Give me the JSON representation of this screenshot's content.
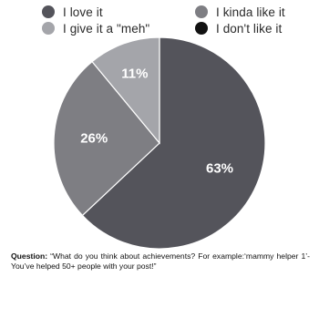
{
  "chart_data": {
    "type": "pie",
    "categories": [
      "I love it",
      "I kinda like it",
      "I give it a \"meh\"",
      "I don't like it"
    ],
    "values": [
      63,
      26,
      11,
      0
    ],
    "data_labels": [
      "63%",
      "26%",
      "11%",
      ""
    ],
    "colors": [
      "#54545b",
      "#7e7e83",
      "#a4a5aa",
      "#121212"
    ],
    "legend_placement": "top",
    "title": "",
    "note": {
      "prefix": "Question:",
      "text": " “What do you think about achievements? For example:‘mammy helper 1’-You’ve helped 50+ people with your post!”"
    }
  }
}
